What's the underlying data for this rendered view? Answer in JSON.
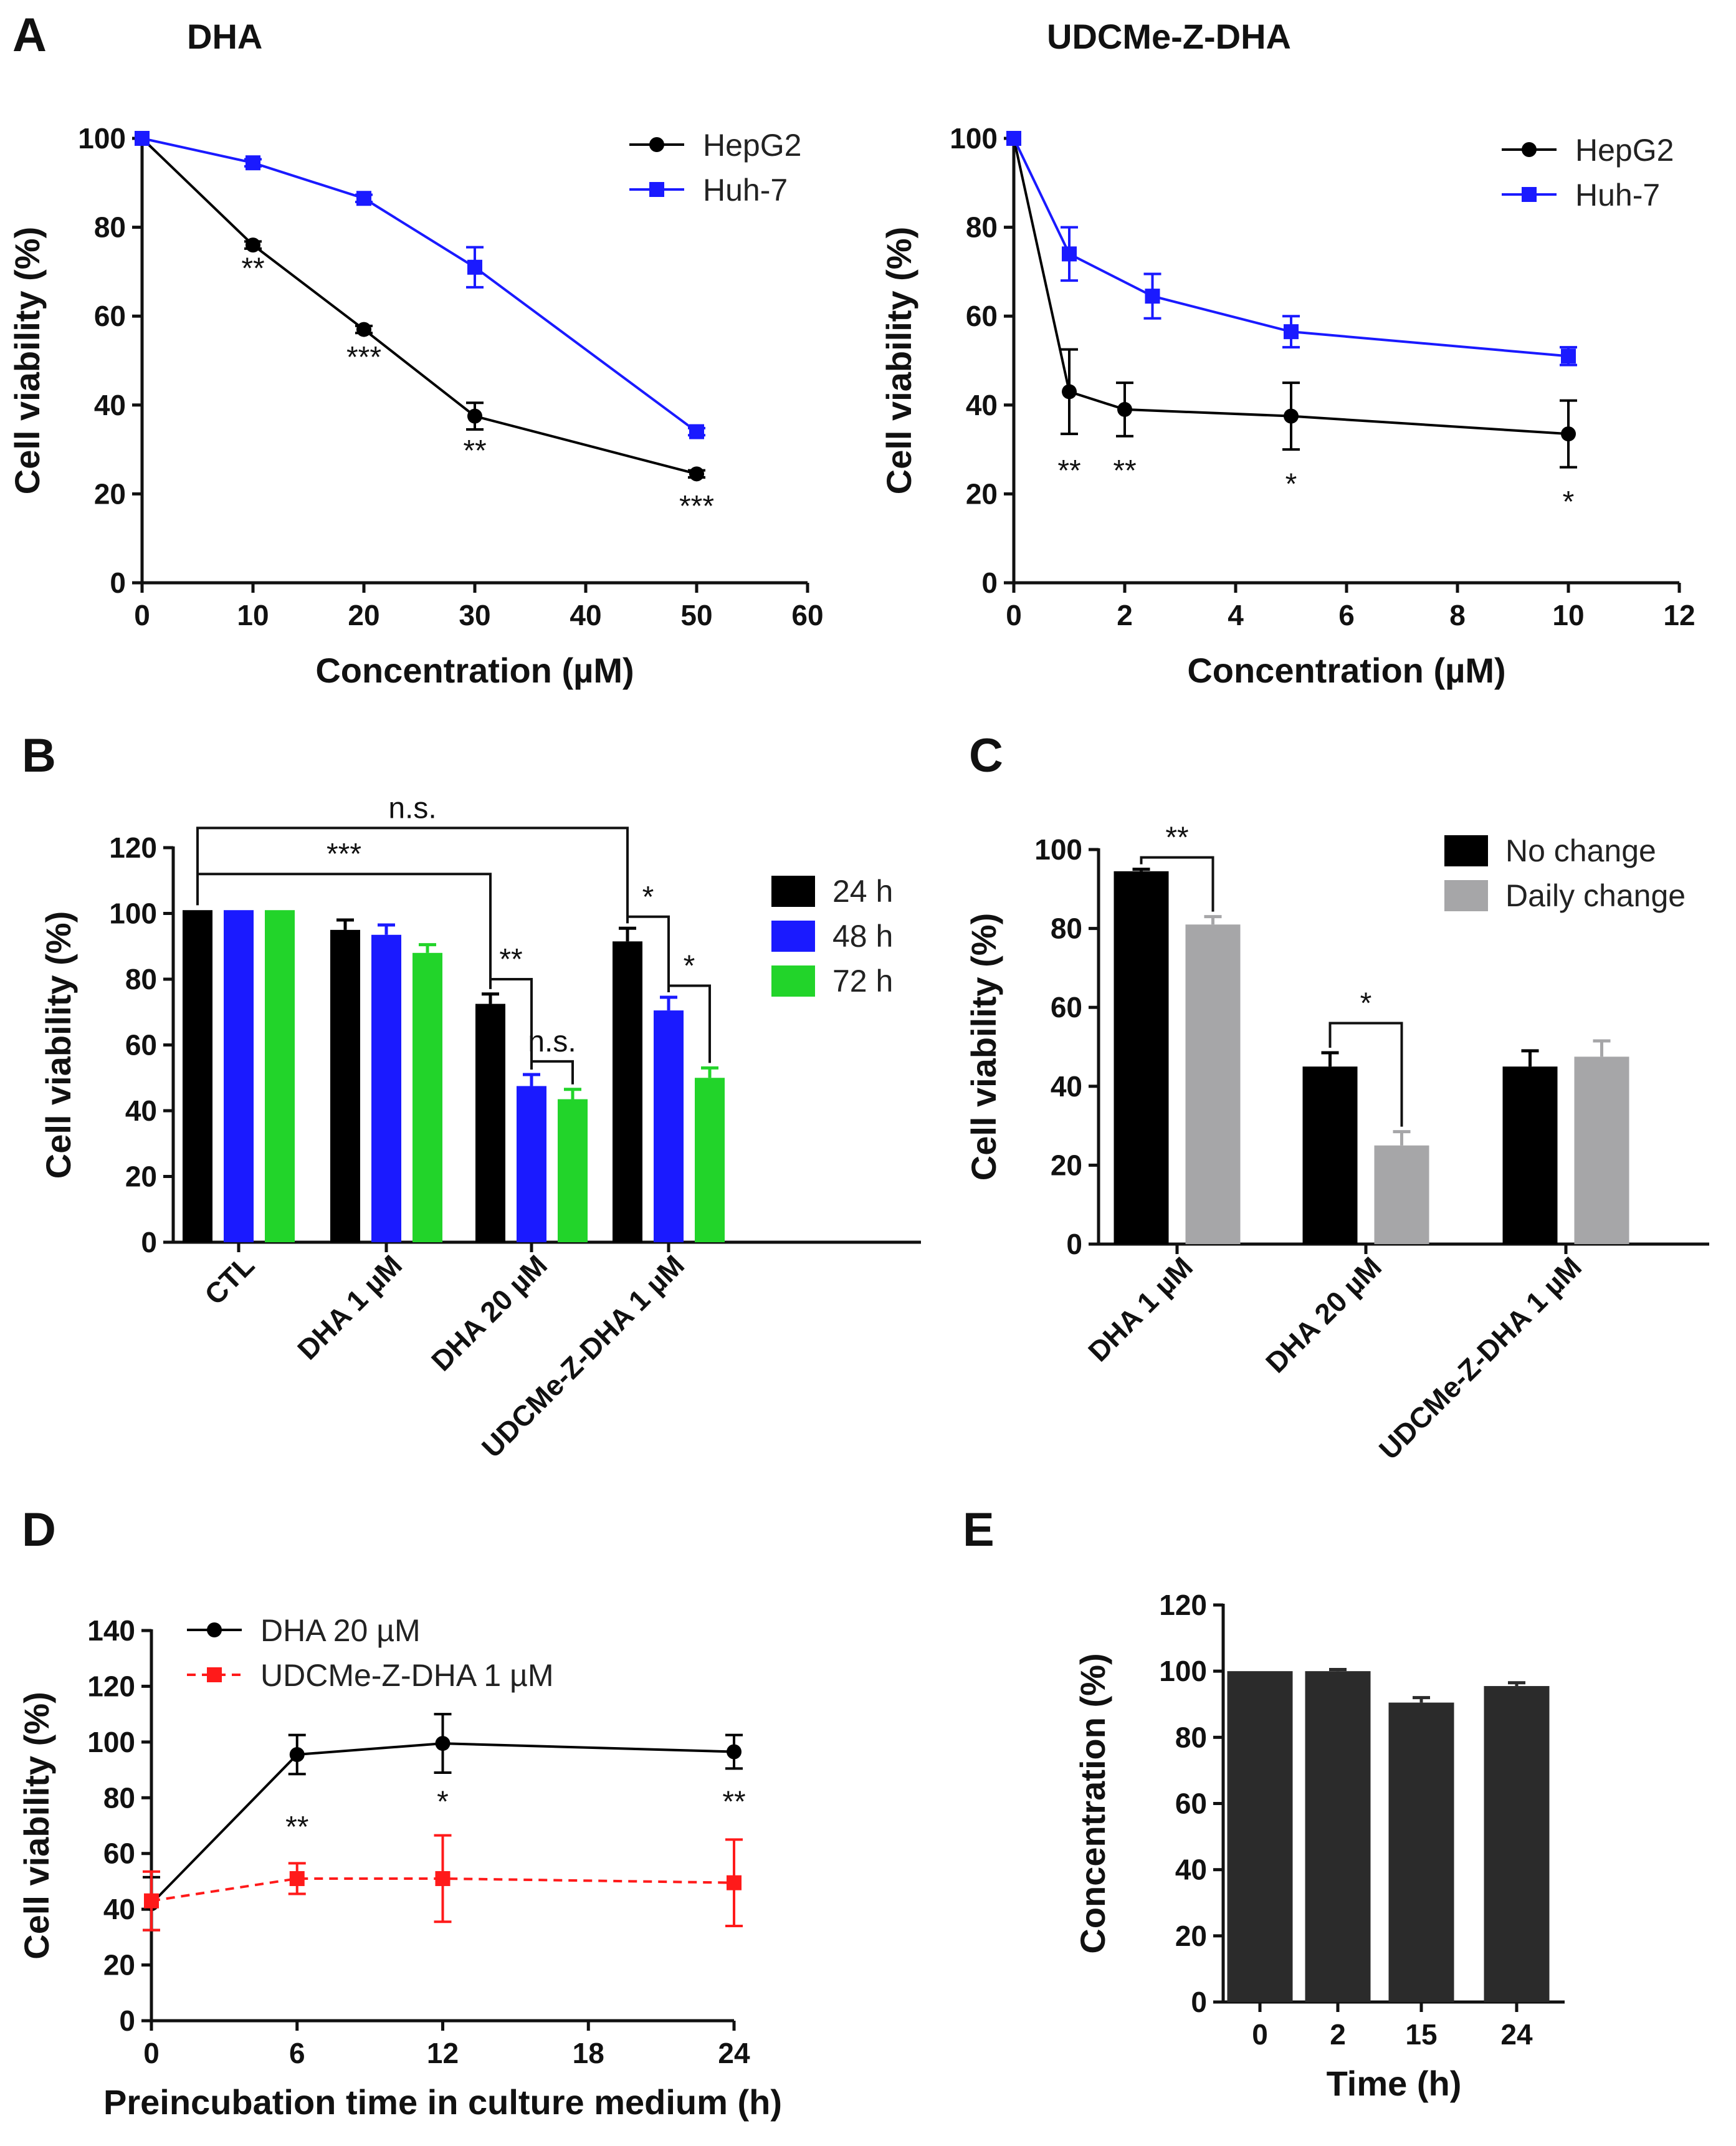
{
  "figure": {
    "panel_letters": [
      "A",
      "B",
      "C",
      "D",
      "E"
    ],
    "colors": {
      "black": "#000000",
      "blue": "#1a1aff",
      "green": "#22d42a",
      "gray": "#a6a6a8",
      "red": "#ff1a1a",
      "darkgray": "#2b2b2b"
    }
  },
  "chart_data": [
    {
      "id": "A1",
      "type": "line",
      "title": "DHA",
      "xlabel": "Concentration (µM)",
      "ylabel": "Cell viability (%)",
      "xlim": [
        0,
        60
      ],
      "ylim": [
        0,
        100
      ],
      "xticks": [
        0,
        10,
        20,
        30,
        40,
        50,
        60
      ],
      "yticks": [
        0,
        20,
        40,
        60,
        80,
        100
      ],
      "legend_position": "top-right",
      "series": [
        {
          "name": "HepG2",
          "marker": "circle",
          "color": "#000000",
          "x": [
            0,
            10,
            20,
            30,
            50
          ],
          "y": [
            100,
            76,
            57,
            37.5,
            24.5
          ],
          "err": [
            0,
            0.8,
            0.8,
            3,
            0.8
          ]
        },
        {
          "name": "Huh-7",
          "marker": "square",
          "color": "#1a1aff",
          "x": [
            0,
            10,
            20,
            30,
            50
          ],
          "y": [
            100,
            94.5,
            86.5,
            71,
            34
          ],
          "err": [
            0,
            0.8,
            0.8,
            4.5,
            0.8
          ]
        }
      ],
      "annotations": [
        {
          "x": 10,
          "y": 68.5,
          "text": "**"
        },
        {
          "x": 20,
          "y": 48.5,
          "text": "***"
        },
        {
          "x": 30,
          "y": 27.5,
          "text": "**"
        },
        {
          "x": 50,
          "y": 15,
          "text": "***"
        }
      ]
    },
    {
      "id": "A2",
      "type": "line",
      "title": "UDCMe-Z-DHA",
      "xlabel": "Concentration (µM)",
      "ylabel": "Cell viability (%)",
      "xlim": [
        0,
        12
      ],
      "ylim": [
        0,
        100
      ],
      "xticks": [
        0,
        2,
        4,
        6,
        8,
        10,
        12
      ],
      "yticks": [
        0,
        20,
        40,
        60,
        80,
        100
      ],
      "legend_position": "top-right",
      "series": [
        {
          "name": "HepG2",
          "marker": "circle",
          "color": "#000000",
          "x": [
            0,
            1,
            2,
            5,
            10
          ],
          "y": [
            100,
            43,
            39,
            37.5,
            33.5
          ],
          "err": [
            0,
            9.5,
            6,
            7.5,
            7.5
          ]
        },
        {
          "name": "Huh-7",
          "marker": "square",
          "color": "#1a1aff",
          "x": [
            0,
            1,
            2.5,
            5,
            10
          ],
          "y": [
            100,
            74,
            64.5,
            56.5,
            51
          ],
          "err": [
            0,
            6,
            5,
            3.5,
            2
          ]
        }
      ],
      "annotations": [
        {
          "x": 1,
          "y": 23,
          "text": "**"
        },
        {
          "x": 2,
          "y": 23,
          "text": "**"
        },
        {
          "x": 5,
          "y": 20,
          "text": "*"
        },
        {
          "x": 10,
          "y": 16,
          "text": "*"
        }
      ]
    },
    {
      "id": "B",
      "type": "bar",
      "ylabel": "Cell viability (%)",
      "ylim": [
        0,
        120
      ],
      "yticks": [
        0,
        20,
        40,
        60,
        80,
        100,
        120
      ],
      "categories": [
        "CTL",
        "DHA 1 µM",
        "DHA 20 µM",
        "UDCMe-Z-DHA 1 µM"
      ],
      "legend_position": "right",
      "series": [
        {
          "name": "24 h",
          "color": "#000000",
          "values": [
            101,
            95,
            72.5,
            91.5
          ],
          "err": [
            0,
            3,
            3,
            4
          ]
        },
        {
          "name": "48 h",
          "color": "#1a1aff",
          "values": [
            101,
            93.5,
            47.5,
            70.5
          ],
          "err": [
            0,
            3,
            3.5,
            4
          ]
        },
        {
          "name": "72 h",
          "color": "#22d42a",
          "values": [
            101,
            88,
            43.5,
            50
          ],
          "err": [
            0,
            2.5,
            3,
            3
          ]
        }
      ],
      "brackets": [
        {
          "from": [
            0,
            0
          ],
          "to": [
            3,
            0
          ],
          "y": 126,
          "label": "n.s."
        },
        {
          "from": [
            0,
            0
          ],
          "to": [
            2,
            0
          ],
          "y": 112,
          "label": "***"
        },
        {
          "from": [
            2,
            0
          ],
          "to": [
            2,
            1
          ],
          "y": 80,
          "label": "**"
        },
        {
          "from": [
            2,
            1
          ],
          "to": [
            2,
            2
          ],
          "y": 55,
          "label": "n.s."
        },
        {
          "from": [
            3,
            0
          ],
          "to": [
            3,
            1
          ],
          "y": 99,
          "label": "*"
        },
        {
          "from": [
            3,
            1
          ],
          "to": [
            3,
            2
          ],
          "y": 78,
          "label": "*"
        }
      ]
    },
    {
      "id": "C",
      "type": "bar",
      "ylabel": "Cell viability (%)",
      "ylim": [
        0,
        100
      ],
      "yticks": [
        0,
        20,
        40,
        60,
        80,
        100
      ],
      "categories": [
        "DHA 1 µM",
        "DHA 20 µM",
        "UDCMe-Z-DHA 1 µM"
      ],
      "legend_position": "top-right",
      "series": [
        {
          "name": "No change",
          "color": "#000000",
          "values": [
            94.5,
            45,
            45
          ],
          "err": [
            0.5,
            3.5,
            4
          ]
        },
        {
          "name": "Daily change",
          "color": "#a6a6a8",
          "values": [
            81,
            25,
            47.5
          ],
          "err": [
            2,
            3.5,
            4
          ]
        }
      ],
      "brackets": [
        {
          "from": [
            0,
            0
          ],
          "to": [
            0,
            1
          ],
          "y": 98,
          "label": "**"
        },
        {
          "from": [
            1,
            0
          ],
          "to": [
            1,
            1
          ],
          "y": 56,
          "label": "*"
        }
      ]
    },
    {
      "id": "D",
      "type": "line",
      "xlabel": "Preincubation time in culture medium (h)",
      "ylabel": "Cell viability (%)",
      "xlim": [
        0,
        24
      ],
      "ylim": [
        0,
        140
      ],
      "xticks": [
        0,
        6,
        12,
        18,
        24
      ],
      "yticks": [
        0,
        20,
        40,
        60,
        80,
        100,
        120,
        140
      ],
      "legend_position": "top-left",
      "series": [
        {
          "name": "DHA 20 µM",
          "marker": "circle",
          "color": "#000000",
          "dash": false,
          "x": [
            0,
            6,
            12,
            24
          ],
          "y": [
            42,
            95.5,
            99.5,
            96.5
          ],
          "err": [
            9.5,
            7,
            10.5,
            6
          ]
        },
        {
          "name": "UDCMe-Z-DHA 1 µM",
          "marker": "square",
          "color": "#ff1a1a",
          "dash": true,
          "x": [
            0,
            6,
            12,
            24
          ],
          "y": [
            43,
            51,
            51,
            49.5
          ],
          "err": [
            10.5,
            5.5,
            15.5,
            15.5
          ]
        }
      ],
      "annotations": [
        {
          "x": 6,
          "y": 66,
          "text": "**"
        },
        {
          "x": 12,
          "y": 75,
          "text": "*"
        },
        {
          "x": 24,
          "y": 75,
          "text": "**"
        }
      ]
    },
    {
      "id": "E",
      "type": "bar",
      "xlabel": "Time (h)",
      "ylabel": "Concentration (%)",
      "ylim": [
        0,
        120
      ],
      "yticks": [
        0,
        20,
        40,
        60,
        80,
        100,
        120
      ],
      "categories": [
        "0",
        "2",
        "15",
        "24"
      ],
      "series": [
        {
          "name": "Concentration",
          "color": "#2b2b2b",
          "values": [
            100,
            100,
            90.5,
            95.5
          ],
          "err": [
            0,
            0.5,
            1.5,
            1
          ]
        }
      ]
    }
  ]
}
